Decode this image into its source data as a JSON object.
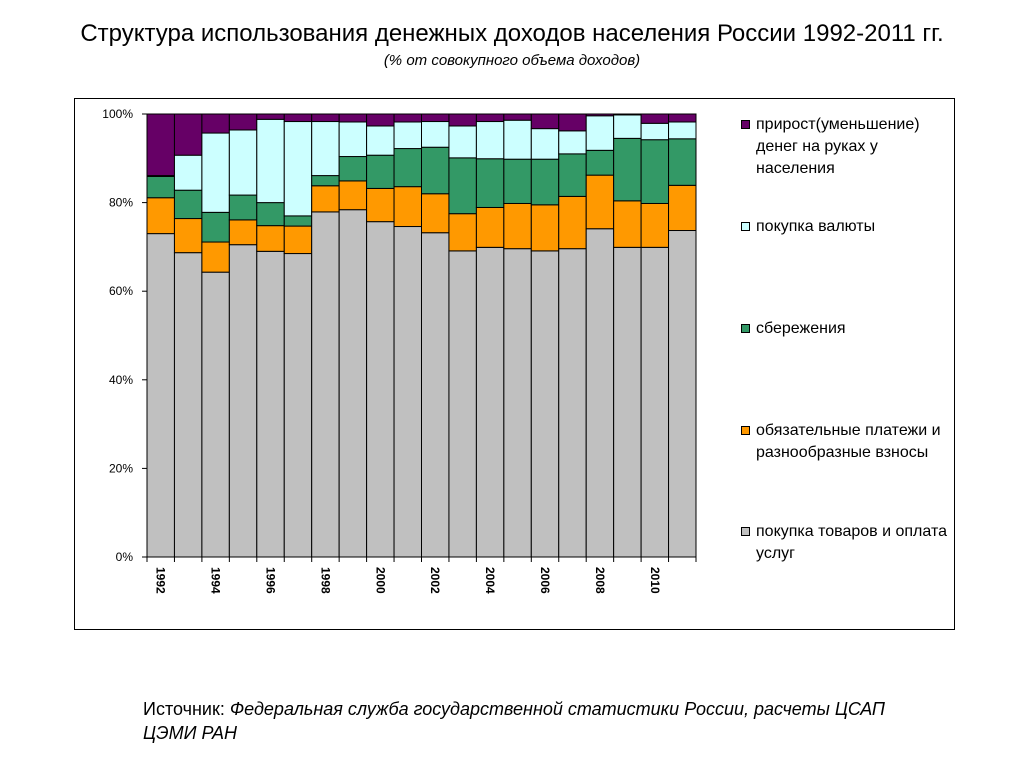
{
  "chart_data": {
    "type": "bar",
    "stacked": true,
    "percent_stacked": true,
    "title": "Структура использования денежных доходов населения России 1992-2011 гг.",
    "subtitle": "(% от совокупного объема доходов)",
    "y_ticks": [
      "0%",
      "20%",
      "40%",
      "60%",
      "80%",
      "100%"
    ],
    "ylim": [
      0,
      100
    ],
    "x_ticks": [
      "1992",
      "1994",
      "1996",
      "1998",
      "2000",
      "2002",
      "2004",
      "2006",
      "2008",
      "2010"
    ],
    "categories": [
      "1992",
      "1993",
      "1994",
      "1995",
      "1996",
      "1997",
      "1998",
      "1999",
      "2000",
      "2001",
      "2002",
      "2003",
      "2004",
      "2005",
      "2006",
      "2007",
      "2008",
      "2009",
      "2010",
      "2011"
    ],
    "series": [
      {
        "name": "покупка товаров и оплата услуг",
        "color": "#c0c0c0",
        "values": [
          73,
          68.7,
          64.3,
          70.5,
          69,
          68.5,
          77.9,
          78.4,
          75.7,
          74.6,
          73.2,
          69.1,
          69.9,
          69.6,
          69.1,
          69.6,
          74.1,
          69.9,
          69.9,
          73.7
        ]
      },
      {
        "name": "обязательные платежи и разнообразные взносы",
        "color": "#ff9900",
        "values": [
          8.1,
          7.7,
          6.8,
          5.6,
          5.8,
          6.2,
          5.9,
          6.5,
          7.5,
          9,
          8.8,
          8.4,
          9,
          10.2,
          10.4,
          11.8,
          12.1,
          10.5,
          9.9,
          10.2
        ]
      },
      {
        "name": "сбережения",
        "color": "#339966",
        "values": [
          4.8,
          6.4,
          6.7,
          5.6,
          5.2,
          2.3,
          2.3,
          5.5,
          7.5,
          8.6,
          10.5,
          12.6,
          11,
          10,
          10.3,
          9.6,
          5.6,
          14.1,
          14.4,
          10.5
        ]
      },
      {
        "name": "покупка валюты",
        "color": "#ccffff",
        "values": [
          0.2,
          7.9,
          17.9,
          14.7,
          18.8,
          21.3,
          12.2,
          7.8,
          6.6,
          6,
          5.8,
          7.2,
          8.4,
          8.8,
          6.9,
          5.2,
          7.8,
          5.3,
          3.7,
          3.8
        ]
      },
      {
        "name": "прирост(уменьшение) денег на руках у населения",
        "color": "#660066",
        "values": [
          13.9,
          9.3,
          4.3,
          3.6,
          1.2,
          1.7,
          1.7,
          1.8,
          2.7,
          1.8,
          1.7,
          2.7,
          1.7,
          1.4,
          3.3,
          3.8,
          0.4,
          0.2,
          2.1,
          1.8
        ]
      }
    ],
    "legend": [
      {
        "label": "прирост(уменьшение) денег на руках у населения",
        "color": "#660066"
      },
      {
        "label": "покупка валюты",
        "color": "#ccffff"
      },
      {
        "label": "сбережения",
        "color": "#339966"
      },
      {
        "label": "обязательные платежи и разнообразные взносы",
        "color": "#ff9900"
      },
      {
        "label": "покупка товаров и оплата услуг",
        "color": "#c0c0c0"
      }
    ],
    "legend_position": "right",
    "grid": false
  },
  "source": {
    "prefix": "Источник: ",
    "text": "Федеральная служба государственной статистики России, расчеты ЦСАП ЦЭМИ РАН"
  }
}
